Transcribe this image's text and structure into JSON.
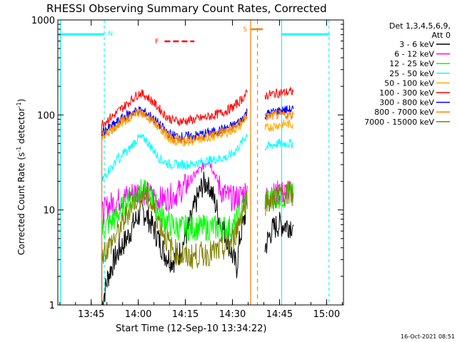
{
  "chart_data": {
    "type": "line",
    "title": "RHESSI Observing Summary Count Rates, Corrected",
    "xlabel": "Start Time (12-Sep-10 13:34:22)",
    "ylabel_parts": {
      "pre": "Corrected Count Rate (s",
      "sup1": "-1",
      "mid": " detector",
      "sup2": "-1",
      "post": ")"
    },
    "x_unit": "minutes after 13:34:22",
    "xlim": [
      0,
      91
    ],
    "ylim": [
      1,
      1000
    ],
    "yscale": "log",
    "x_ticks": [
      {
        "x": 10.63,
        "label": "13:45"
      },
      {
        "x": 25.63,
        "label": "14:00"
      },
      {
        "x": 40.63,
        "label": "14:15"
      },
      {
        "x": 55.63,
        "label": "14:30"
      },
      {
        "x": 70.63,
        "label": "14:45"
      },
      {
        "x": 85.63,
        "label": "15:00"
      }
    ],
    "y_ticks": [
      {
        "y": 1,
        "label": "1"
      },
      {
        "y": 10,
        "label": "10"
      },
      {
        "y": 100,
        "label": "100"
      },
      {
        "y": 1000,
        "label": "1000"
      }
    ],
    "legend_header": [
      "Det 1,3,4,5,6,9,",
      "Att 0"
    ],
    "legend_position": "right",
    "series": [
      {
        "name": "3 - 6 keV",
        "color": "#000000",
        "x": [
          14,
          16,
          18,
          20,
          22,
          24,
          26,
          27,
          28,
          30,
          32,
          34,
          36,
          38,
          40,
          42,
          44,
          46,
          48,
          50,
          52,
          54,
          56,
          57,
          58,
          60,
          60.5,
          66,
          68,
          70,
          72,
          74,
          75
        ],
        "y": [
          1,
          2,
          3,
          4,
          5,
          7,
          9,
          9.5,
          9,
          7,
          5,
          3.5,
          3,
          3,
          4.5,
          7,
          12,
          18,
          20,
          12,
          7,
          5,
          3,
          2.5,
          5,
          10,
          13,
          4,
          6,
          7,
          7,
          7,
          7
        ]
      },
      {
        "name": "6 - 12 keV",
        "color": "#ff00ff",
        "x": [
          14,
          16,
          18,
          20,
          22,
          24,
          26,
          28,
          30,
          32,
          34,
          36,
          38,
          40,
          42,
          44,
          46,
          48,
          50,
          52,
          54,
          56,
          58,
          60,
          60.5,
          66,
          68,
          70,
          72,
          74,
          75
        ],
        "y": [
          9,
          11,
          12,
          13,
          14,
          15,
          16,
          15,
          14,
          13,
          13,
          14,
          15,
          17,
          20,
          24,
          28,
          34,
          24,
          16,
          14,
          13,
          14,
          16,
          17,
          13,
          14,
          15,
          15,
          15,
          15
        ]
      },
      {
        "name": "12 - 25 keV",
        "color": "#00ff00",
        "x": [
          14,
          16,
          18,
          20,
          22,
          24,
          26,
          28,
          30,
          32,
          34,
          36,
          38,
          40,
          42,
          44,
          46,
          48,
          50,
          52,
          54,
          56,
          58,
          60,
          60.5,
          66,
          68,
          70,
          72,
          74,
          75
        ],
        "y": [
          6,
          7,
          8,
          10,
          12,
          14,
          16,
          15,
          13,
          10,
          8,
          7,
          6.5,
          6.5,
          6.5,
          6.5,
          6.5,
          6.5,
          6.5,
          6.5,
          6.5,
          6.5,
          9,
          13,
          14,
          12,
          13,
          14,
          14,
          14,
          14
        ]
      },
      {
        "name": "25 - 50 keV",
        "color": "#00ffff",
        "x": [
          14,
          16,
          18,
          19,
          20,
          21,
          22,
          24,
          26,
          28,
          30,
          32,
          34,
          36,
          38,
          40,
          42,
          44,
          46,
          48,
          50,
          52,
          54,
          56,
          58,
          60,
          60.5,
          66,
          68,
          70,
          72,
          74,
          75
        ],
        "y": [
          20,
          26,
          30,
          38,
          32,
          42,
          40,
          50,
          58,
          55,
          45,
          36,
          32,
          30,
          30,
          30,
          30,
          31,
          32,
          33,
          34,
          35,
          36,
          40,
          48,
          60,
          65,
          45,
          48,
          50,
          50,
          50,
          50
        ]
      },
      {
        "name": "50 - 100 keV",
        "color": "#ffaa00",
        "x": [
          14,
          16,
          18,
          20,
          22,
          24,
          26,
          28,
          30,
          32,
          34,
          36,
          38,
          40,
          42,
          44,
          46,
          48,
          50,
          52,
          54,
          56,
          58,
          60,
          60.5,
          66,
          68,
          70,
          72,
          74,
          75
        ],
        "y": [
          60,
          68,
          75,
          82,
          90,
          100,
          105,
          98,
          88,
          75,
          62,
          55,
          52,
          52,
          53,
          54,
          56,
          58,
          60,
          63,
          66,
          70,
          76,
          95,
          100,
          72,
          75,
          78,
          80,
          80,
          80
        ]
      },
      {
        "name": "100 - 300 keV",
        "color": "#ff0000",
        "x": [
          14,
          16,
          18,
          20,
          22,
          24,
          26,
          28,
          30,
          32,
          34,
          36,
          38,
          40,
          42,
          44,
          46,
          48,
          50,
          52,
          54,
          56,
          58,
          60,
          60.5,
          66,
          68,
          70,
          72,
          74,
          75
        ],
        "y": [
          80,
          90,
          100,
          115,
          130,
          150,
          170,
          160,
          140,
          120,
          100,
          90,
          86,
          86,
          88,
          90,
          93,
          96,
          100,
          105,
          112,
          122,
          140,
          165,
          170,
          160,
          165,
          170,
          172,
          175,
          175
        ]
      },
      {
        "name": "300 - 800 keV",
        "color": "#0000ff",
        "x": [
          14,
          16,
          18,
          20,
          22,
          24,
          26,
          28,
          30,
          32,
          34,
          36,
          38,
          40,
          42,
          44,
          46,
          48,
          50,
          52,
          54,
          56,
          58,
          60,
          60.5,
          66,
          68,
          70,
          72,
          74,
          75
        ],
        "y": [
          65,
          72,
          80,
          90,
          100,
          108,
          112,
          106,
          95,
          82,
          70,
          62,
          60,
          59,
          60,
          61,
          63,
          65,
          67,
          70,
          73,
          78,
          86,
          105,
          112,
          100,
          106,
          110,
          112,
          114,
          115
        ]
      },
      {
        "name": "800 - 7000 keV",
        "color": "#ff8000",
        "x": [
          14,
          16,
          18,
          20,
          22,
          24,
          26,
          28,
          30,
          32,
          34,
          36,
          38,
          40,
          42,
          44,
          46,
          48,
          50,
          52,
          54,
          56,
          58,
          60,
          60.5,
          66,
          68,
          70,
          72,
          74,
          75
        ],
        "y": [
          60,
          66,
          74,
          84,
          94,
          102,
          108,
          102,
          90,
          78,
          66,
          58,
          55,
          55,
          56,
          57,
          59,
          61,
          63,
          66,
          69,
          74,
          82,
          98,
          104,
          94,
          98,
          100,
          100,
          100,
          100
        ]
      },
      {
        "name": "7000 - 15000 keV",
        "color": "#808000",
        "x": [
          14,
          16,
          18,
          20,
          22,
          24,
          26,
          28,
          30,
          32,
          34,
          36,
          38,
          40,
          42,
          44,
          46,
          48,
          50,
          52,
          54,
          56,
          58,
          60,
          60.5,
          66,
          68,
          70,
          72,
          74,
          75
        ],
        "y": [
          3.5,
          4,
          5,
          6.5,
          9,
          12,
          15,
          14,
          11,
          8,
          5.5,
          4,
          3.5,
          3.2,
          3.2,
          3.3,
          3.4,
          3.5,
          3.6,
          3.8,
          4,
          5,
          8,
          13,
          14,
          12,
          13,
          14,
          15,
          15,
          15
        ]
      }
    ],
    "flags": [
      {
        "label": "N",
        "color": "#00ffff",
        "x_label": 16
      },
      {
        "label": "F",
        "color": "#ff0000",
        "x_label": 31
      },
      {
        "label": "S",
        "color": "#ff8000",
        "x_label": 59
      }
    ],
    "timestamp": "16-Oct-2021 08:51"
  }
}
